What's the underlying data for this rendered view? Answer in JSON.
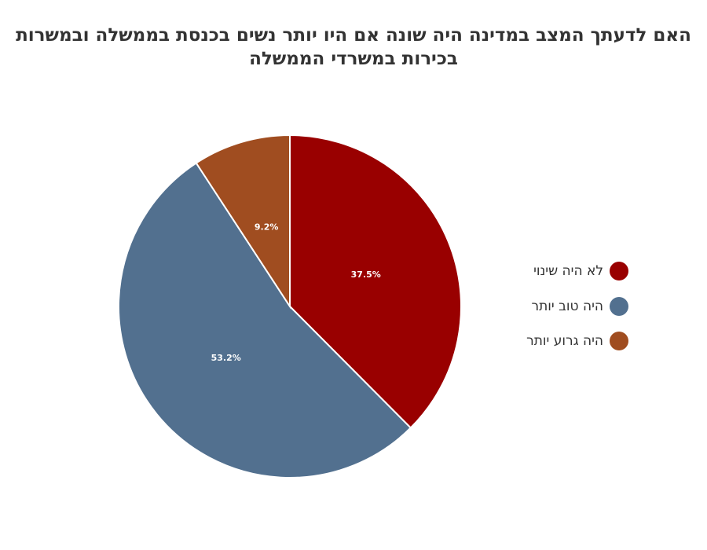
{
  "chart_data": {
    "type": "pie",
    "title": [
      "האם לדעתך המצב במדינה היה שונה אם היו יותר נשים בכנסת בממשלה ובמשרות",
      "בכירות במשרדי הממשלה"
    ],
    "categories": [
      "לא היה שינוי",
      "היה טוב יותר",
      "היה גרוע יותר"
    ],
    "values": [
      37.5,
      53.2,
      9.2
    ],
    "data_labels": [
      "37.5%",
      "53.2%",
      "9.2%"
    ],
    "colors": [
      "#990000",
      "#52708f",
      "#a04d20"
    ],
    "legend_position": "right"
  }
}
